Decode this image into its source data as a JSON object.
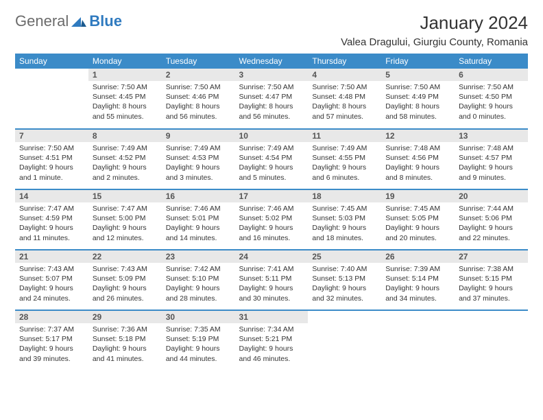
{
  "logo": {
    "general": "General",
    "blue": "Blue"
  },
  "title": "January 2024",
  "location": "Valea Dragului, Giurgiu County, Romania",
  "colors": {
    "header_bg": "#3b8bc8",
    "header_text": "#ffffff",
    "daynum_bg": "#e8e8e8",
    "daynum_text": "#555555",
    "body_text": "#333333",
    "row_border": "#3b8bc8",
    "logo_gray": "#6b6b6b",
    "logo_blue": "#2f7abf"
  },
  "weekdays": [
    "Sunday",
    "Monday",
    "Tuesday",
    "Wednesday",
    "Thursday",
    "Friday",
    "Saturday"
  ],
  "weeks": [
    [
      null,
      {
        "n": "1",
        "sr": "7:50 AM",
        "ss": "4:45 PM",
        "dl": "8 hours and 55 minutes."
      },
      {
        "n": "2",
        "sr": "7:50 AM",
        "ss": "4:46 PM",
        "dl": "8 hours and 56 minutes."
      },
      {
        "n": "3",
        "sr": "7:50 AM",
        "ss": "4:47 PM",
        "dl": "8 hours and 56 minutes."
      },
      {
        "n": "4",
        "sr": "7:50 AM",
        "ss": "4:48 PM",
        "dl": "8 hours and 57 minutes."
      },
      {
        "n": "5",
        "sr": "7:50 AM",
        "ss": "4:49 PM",
        "dl": "8 hours and 58 minutes."
      },
      {
        "n": "6",
        "sr": "7:50 AM",
        "ss": "4:50 PM",
        "dl": "9 hours and 0 minutes."
      }
    ],
    [
      {
        "n": "7",
        "sr": "7:50 AM",
        "ss": "4:51 PM",
        "dl": "9 hours and 1 minute."
      },
      {
        "n": "8",
        "sr": "7:49 AM",
        "ss": "4:52 PM",
        "dl": "9 hours and 2 minutes."
      },
      {
        "n": "9",
        "sr": "7:49 AM",
        "ss": "4:53 PM",
        "dl": "9 hours and 3 minutes."
      },
      {
        "n": "10",
        "sr": "7:49 AM",
        "ss": "4:54 PM",
        "dl": "9 hours and 5 minutes."
      },
      {
        "n": "11",
        "sr": "7:49 AM",
        "ss": "4:55 PM",
        "dl": "9 hours and 6 minutes."
      },
      {
        "n": "12",
        "sr": "7:48 AM",
        "ss": "4:56 PM",
        "dl": "9 hours and 8 minutes."
      },
      {
        "n": "13",
        "sr": "7:48 AM",
        "ss": "4:57 PM",
        "dl": "9 hours and 9 minutes."
      }
    ],
    [
      {
        "n": "14",
        "sr": "7:47 AM",
        "ss": "4:59 PM",
        "dl": "9 hours and 11 minutes."
      },
      {
        "n": "15",
        "sr": "7:47 AM",
        "ss": "5:00 PM",
        "dl": "9 hours and 12 minutes."
      },
      {
        "n": "16",
        "sr": "7:46 AM",
        "ss": "5:01 PM",
        "dl": "9 hours and 14 minutes."
      },
      {
        "n": "17",
        "sr": "7:46 AM",
        "ss": "5:02 PM",
        "dl": "9 hours and 16 minutes."
      },
      {
        "n": "18",
        "sr": "7:45 AM",
        "ss": "5:03 PM",
        "dl": "9 hours and 18 minutes."
      },
      {
        "n": "19",
        "sr": "7:45 AM",
        "ss": "5:05 PM",
        "dl": "9 hours and 20 minutes."
      },
      {
        "n": "20",
        "sr": "7:44 AM",
        "ss": "5:06 PM",
        "dl": "9 hours and 22 minutes."
      }
    ],
    [
      {
        "n": "21",
        "sr": "7:43 AM",
        "ss": "5:07 PM",
        "dl": "9 hours and 24 minutes."
      },
      {
        "n": "22",
        "sr": "7:43 AM",
        "ss": "5:09 PM",
        "dl": "9 hours and 26 minutes."
      },
      {
        "n": "23",
        "sr": "7:42 AM",
        "ss": "5:10 PM",
        "dl": "9 hours and 28 minutes."
      },
      {
        "n": "24",
        "sr": "7:41 AM",
        "ss": "5:11 PM",
        "dl": "9 hours and 30 minutes."
      },
      {
        "n": "25",
        "sr": "7:40 AM",
        "ss": "5:13 PM",
        "dl": "9 hours and 32 minutes."
      },
      {
        "n": "26",
        "sr": "7:39 AM",
        "ss": "5:14 PM",
        "dl": "9 hours and 34 minutes."
      },
      {
        "n": "27",
        "sr": "7:38 AM",
        "ss": "5:15 PM",
        "dl": "9 hours and 37 minutes."
      }
    ],
    [
      {
        "n": "28",
        "sr": "7:37 AM",
        "ss": "5:17 PM",
        "dl": "9 hours and 39 minutes."
      },
      {
        "n": "29",
        "sr": "7:36 AM",
        "ss": "5:18 PM",
        "dl": "9 hours and 41 minutes."
      },
      {
        "n": "30",
        "sr": "7:35 AM",
        "ss": "5:19 PM",
        "dl": "9 hours and 44 minutes."
      },
      {
        "n": "31",
        "sr": "7:34 AM",
        "ss": "5:21 PM",
        "dl": "9 hours and 46 minutes."
      },
      null,
      null,
      null
    ]
  ],
  "labels": {
    "sunrise": "Sunrise:",
    "sunset": "Sunset:",
    "daylight": "Daylight:"
  }
}
